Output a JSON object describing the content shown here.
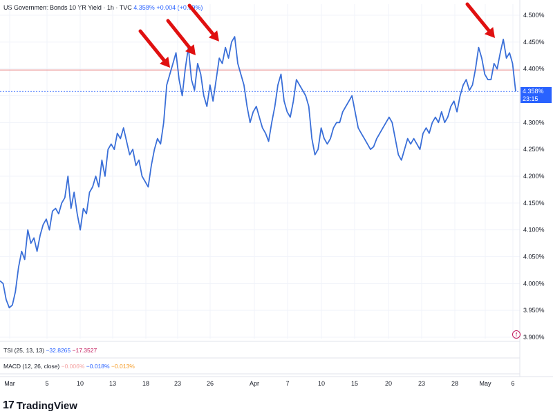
{
  "header": {
    "title": "US Government Bonds 10 YR Yield · 1h · TVC",
    "last": "4.358%",
    "change": "+0.004",
    "change_pct": "(+0.09%)"
  },
  "price_tag": {
    "value": "4.358%",
    "countdown": "23:15"
  },
  "indicators": {
    "tsi": {
      "label": "TSI (25, 13, 13)",
      "v1": "−32.8265",
      "v2": "−17.3527"
    },
    "macd": {
      "label": "MACD (12, 26, close)",
      "v1": "−0.006%",
      "v2": "−0.018%",
      "v3": "−0.013%"
    }
  },
  "branding": {
    "logo_mark": "17",
    "logo_text": "TradingView"
  },
  "colors": {
    "line": "#3a6fd8",
    "resistance": "#e57373",
    "arrow": "#e01010",
    "tag": "#2962ff"
  },
  "chart_data": {
    "type": "line",
    "title": "US Government Bonds 10 YR Yield · 1h · TVC",
    "xlabel": "",
    "ylabel": "",
    "ylim": [
      3.88,
      4.51
    ],
    "y_ticks": [
      "4.500%",
      "4.450%",
      "4.400%",
      "4.350%",
      "4.300%",
      "4.250%",
      "4.200%",
      "4.150%",
      "4.100%",
      "4.050%",
      "4.000%",
      "3.950%",
      "3.900%"
    ],
    "x_ticks": [
      "Mar",
      "5",
      "10",
      "13",
      "18",
      "23",
      "26",
      "Apr",
      "7",
      "10",
      "15",
      "20",
      "23",
      "28",
      "May",
      "6"
    ],
    "resistance_level": 4.398,
    "last_price_level": 4.358,
    "annotations": [
      "arrow at first peak",
      "arrow at second peak",
      "arrow at third peak",
      "arrow at May peak"
    ],
    "series": [
      {
        "values": [
          4.005,
          4.0,
          3.97,
          3.955,
          3.96,
          3.985,
          4.03,
          4.06,
          4.045,
          4.1,
          4.075,
          4.085,
          4.06,
          4.09,
          4.11,
          4.12,
          4.1,
          4.135,
          4.14,
          4.13,
          4.15,
          4.16,
          4.2,
          4.14,
          4.17,
          4.13,
          4.1,
          4.14,
          4.13,
          4.17,
          4.18,
          4.2,
          4.18,
          4.23,
          4.2,
          4.25,
          4.26,
          4.25,
          4.28,
          4.27,
          4.29,
          4.265,
          4.24,
          4.25,
          4.22,
          4.23,
          4.2,
          4.19,
          4.18,
          4.22,
          4.25,
          4.27,
          4.26,
          4.3,
          4.37,
          4.39,
          4.41,
          4.43,
          4.38,
          4.35,
          4.4,
          4.44,
          4.38,
          4.36,
          4.41,
          4.39,
          4.35,
          4.33,
          4.37,
          4.34,
          4.38,
          4.42,
          4.41,
          4.44,
          4.42,
          4.45,
          4.46,
          4.41,
          4.39,
          4.37,
          4.33,
          4.3,
          4.32,
          4.33,
          4.31,
          4.29,
          4.28,
          4.265,
          4.3,
          4.33,
          4.37,
          4.39,
          4.34,
          4.32,
          4.31,
          4.34,
          4.38,
          4.37,
          4.36,
          4.35,
          4.33,
          4.27,
          4.24,
          4.25,
          4.29,
          4.27,
          4.26,
          4.27,
          4.29,
          4.3,
          4.3,
          4.32,
          4.33,
          4.34,
          4.35,
          4.32,
          4.29,
          4.28,
          4.27,
          4.26,
          4.25,
          4.255,
          4.27,
          4.28,
          4.29,
          4.3,
          4.31,
          4.3,
          4.27,
          4.24,
          4.23,
          4.25,
          4.27,
          4.26,
          4.27,
          4.26,
          4.25,
          4.28,
          4.29,
          4.28,
          4.3,
          4.31,
          4.3,
          4.32,
          4.3,
          4.31,
          4.33,
          4.34,
          4.32,
          4.35,
          4.37,
          4.38,
          4.36,
          4.37,
          4.4,
          4.44,
          4.42,
          4.39,
          4.38,
          4.38,
          4.41,
          4.4,
          4.43,
          4.455,
          4.42,
          4.43,
          4.41,
          4.358
        ]
      }
    ]
  }
}
